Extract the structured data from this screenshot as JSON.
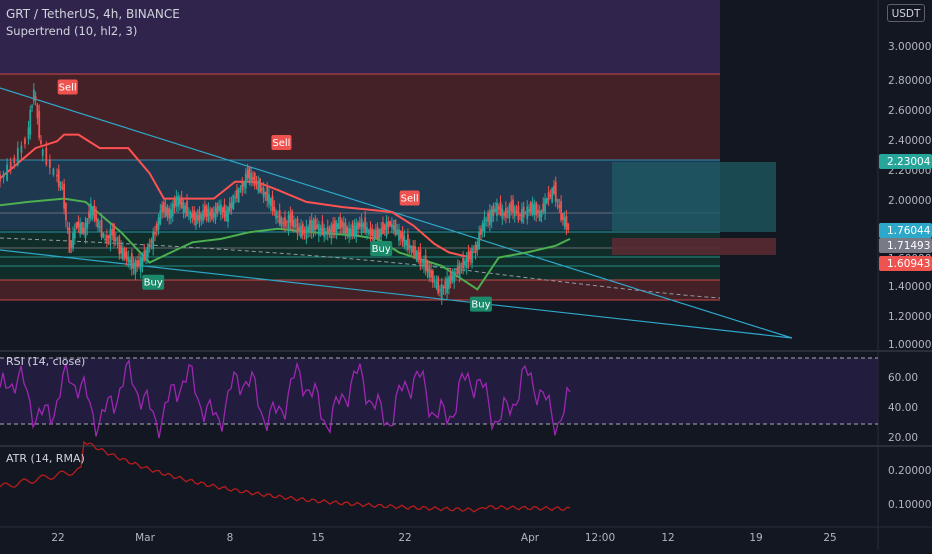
{
  "header": {
    "symbol_line": "GRT / TetherUS, 4h, BINANCE",
    "indicator_line": "Supertrend (10, hl2, 3)",
    "currency_button": "USDT"
  },
  "panes": {
    "rsi_title": "RSI (14, close)",
    "atr_title": "ATR (14, RMA)"
  },
  "colors": {
    "background": "#131722",
    "bull": "#26a69a",
    "bear": "#ef5350",
    "supertrend_up": "#4caf50",
    "supertrend_down": "#ff5252",
    "trendline": "#2ea8c9",
    "rsi_line": "#9c27b0",
    "atr_line": "#b71c1c"
  },
  "chart_data": [
    {
      "type": "candlestick",
      "title": "GRT / TetherUS, 4h, BINANCE",
      "y_ticks": [
        "3.00000",
        "2.80000",
        "2.60000",
        "2.40000",
        "2.20000",
        "2.00000",
        "1.80000",
        "1.60000",
        "1.40000",
        "1.20000",
        "1.00000"
      ],
      "ylim": [
        1.0,
        3.08
      ],
      "x_ticks": [
        "22",
        "Mar",
        "8",
        "15",
        "22",
        "Apr",
        "12:00",
        "12",
        "19",
        "25"
      ],
      "price_tags": [
        {
          "value": "2.23004",
          "color": "#26a69a"
        },
        {
          "value": "1.76044",
          "color": "#2ea8c9"
        },
        {
          "value": "1.71493",
          "color": "#787b86"
        },
        {
          "value": "1.60943",
          "color": "#ef5350"
        }
      ],
      "signals": [
        {
          "label": "Sell",
          "time": 9.5,
          "price": 2.56
        },
        {
          "label": "Sell",
          "time": 39.5,
          "price": 2.23
        },
        {
          "label": "Sell",
          "time": 57.5,
          "price": 1.9
        },
        {
          "label": "Buy",
          "time": 21.5,
          "price": 1.4
        },
        {
          "label": "Buy",
          "time": 53.5,
          "price": 1.6
        },
        {
          "label": "Buy",
          "time": 67.5,
          "price": 1.27
        }
      ],
      "close_path": [
        [
          0,
          2.0
        ],
        [
          2,
          2.1
        ],
        [
          4,
          2.25
        ],
        [
          5,
          2.55
        ],
        [
          6,
          2.2
        ],
        [
          8,
          2.05
        ],
        [
          9,
          1.95
        ],
        [
          10,
          1.6
        ],
        [
          11,
          1.75
        ],
        [
          12,
          1.7
        ],
        [
          13,
          1.85
        ],
        [
          14,
          1.75
        ],
        [
          15,
          1.65
        ],
        [
          16,
          1.7
        ],
        [
          17,
          1.6
        ],
        [
          18,
          1.55
        ],
        [
          19,
          1.5
        ],
        [
          20,
          1.52
        ],
        [
          21,
          1.6
        ],
        [
          22,
          1.7
        ],
        [
          23,
          1.85
        ],
        [
          24,
          1.8
        ],
        [
          25,
          1.9
        ],
        [
          26,
          1.85
        ],
        [
          27,
          1.8
        ],
        [
          28,
          1.78
        ],
        [
          29,
          1.82
        ],
        [
          30,
          1.8
        ],
        [
          31,
          1.85
        ],
        [
          32,
          1.8
        ],
        [
          33,
          1.9
        ],
        [
          34,
          1.95
        ],
        [
          35,
          2.05
        ],
        [
          36,
          2.0
        ],
        [
          37,
          1.95
        ],
        [
          38,
          1.9
        ],
        [
          39,
          1.8
        ],
        [
          40,
          1.75
        ],
        [
          41,
          1.78
        ],
        [
          42,
          1.72
        ],
        [
          43,
          1.7
        ],
        [
          44,
          1.75
        ],
        [
          45,
          1.72
        ],
        [
          46,
          1.7
        ],
        [
          47,
          1.72
        ],
        [
          48,
          1.75
        ],
        [
          49,
          1.7
        ],
        [
          50,
          1.72
        ],
        [
          51,
          1.75
        ],
        [
          52,
          1.7
        ],
        [
          53,
          1.68
        ],
        [
          54,
          1.72
        ],
        [
          55,
          1.75
        ],
        [
          56,
          1.7
        ],
        [
          57,
          1.65
        ],
        [
          58,
          1.6
        ],
        [
          59,
          1.55
        ],
        [
          60,
          1.5
        ],
        [
          61,
          1.42
        ],
        [
          62,
          1.35
        ],
        [
          63,
          1.4
        ],
        [
          64,
          1.45
        ],
        [
          65,
          1.5
        ],
        [
          66,
          1.55
        ],
        [
          67,
          1.6
        ],
        [
          68,
          1.75
        ],
        [
          69,
          1.8
        ],
        [
          70,
          1.85
        ],
        [
          71,
          1.8
        ],
        [
          72,
          1.85
        ],
        [
          73,
          1.8
        ],
        [
          74,
          1.82
        ],
        [
          75,
          1.85
        ],
        [
          76,
          1.8
        ],
        [
          77,
          1.9
        ],
        [
          78,
          1.95
        ],
        [
          79,
          1.8
        ],
        [
          80,
          1.72
        ]
      ]
    },
    {
      "type": "line",
      "title": "RSI (14, close)",
      "y_ticks": [
        "60.00",
        "40.00",
        "20.00"
      ],
      "ylim": [
        17,
        77
      ]
    },
    {
      "type": "line",
      "title": "ATR (14, RMA)",
      "y_ticks": [
        "0.20000",
        "0.10000"
      ],
      "ylim": [
        0.05,
        0.3
      ]
    }
  ]
}
